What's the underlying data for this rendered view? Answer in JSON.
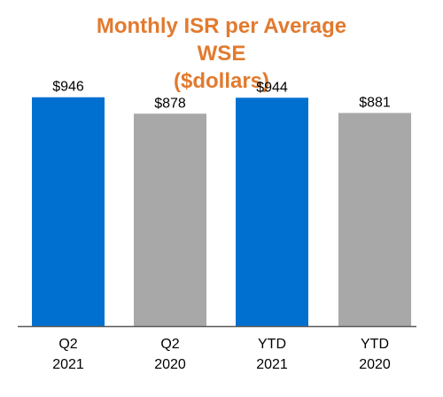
{
  "chart_data": {
    "type": "bar",
    "title_lines": [
      "Monthly ISR per Average",
      "WSE",
      "($dollars)"
    ],
    "categories": [
      [
        "Q2",
        "2021"
      ],
      [
        "Q2",
        "2020"
      ],
      [
        "YTD",
        "2021"
      ],
      [
        "YTD",
        "2020"
      ]
    ],
    "values": [
      946,
      878,
      944,
      881
    ],
    "value_labels": [
      "$946",
      "$878",
      "$944",
      "$881"
    ],
    "colors": [
      "#0070d0",
      "#a8a8a8",
      "#0070d0",
      "#a8a8a8"
    ],
    "ylim": [
      0,
      1000
    ],
    "grid": false,
    "legend": "none",
    "title_color": "#e27a2e",
    "axis_color": "#595959"
  }
}
